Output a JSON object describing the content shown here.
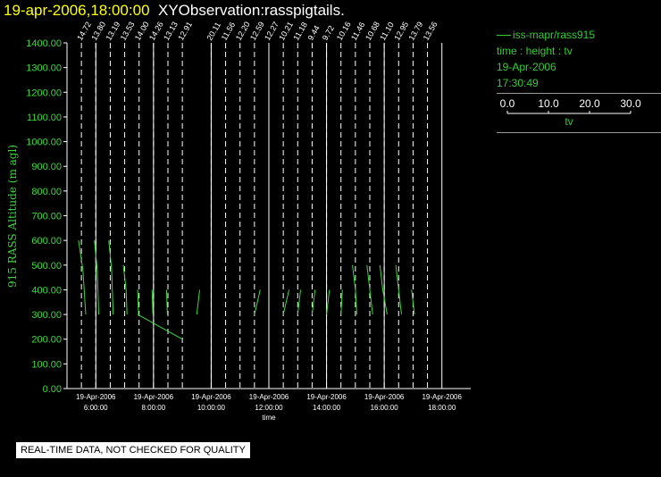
{
  "header": {
    "datetime": "19-apr-2006,18:00:00",
    "title": "XYObservation:rasspigtails."
  },
  "legend": {
    "series": "iss-mapr/rass915",
    "subtitle": "time : height : tv",
    "date": "19-Apr-2006",
    "time": "17:30:49",
    "scale_ticks": [
      "0.0",
      "10.0",
      "20.0",
      "30.0"
    ],
    "scale_label": "tv"
  },
  "footer_notice": "REAL-TIME DATA, NOT CHECKED FOR QUALITY",
  "colors": {
    "data": "#33dd33",
    "axis": "#ffffff",
    "text": "#ffffff",
    "title_accent": "#ffff00"
  },
  "chart_data": {
    "type": "scatter",
    "title": "",
    "ylabel": "915 RASS Altitude (m agl)",
    "xlabel": "time",
    "ylim": [
      0,
      1400
    ],
    "yticks": [
      0,
      100,
      200,
      300,
      400,
      500,
      600,
      700,
      800,
      900,
      1000,
      1100,
      1200,
      1300,
      1400
    ],
    "ytick_labels": [
      "0.00",
      "100.00",
      "200.00",
      "300.00",
      "400.00",
      "500.00",
      "600.00",
      "700.00",
      "800.00",
      "900.00",
      "1000.00",
      "1100.00",
      "1200.00",
      "1300.00",
      "1400.00"
    ],
    "xlim": [
      "05:00",
      "19:00"
    ],
    "xticks": [
      {
        "hour": 6,
        "date": "19-Apr-2006",
        "time": "6:00:00"
      },
      {
        "hour": 8,
        "date": "19-Apr-2006",
        "time": "8:00:00"
      },
      {
        "hour": 10,
        "date": "19-Apr-2006",
        "time": "10:00:00"
      },
      {
        "hour": 12,
        "date": "19-Apr-2006",
        "time": "12:00:00"
      },
      {
        "hour": 14,
        "date": "19-Apr-2006",
        "time": "14:00:00"
      },
      {
        "hour": 16,
        "date": "19-Apr-2006",
        "time": "16:00:00"
      },
      {
        "hour": 18,
        "date": "19-Apr-2006",
        "time": "18:00:00"
      }
    ],
    "profiles": [
      {
        "hour": 5.5,
        "label": "14.72"
      },
      {
        "hour": 6.0,
        "label": "13.80"
      },
      {
        "hour": 6.5,
        "label": "13.19"
      },
      {
        "hour": 7.0,
        "label": "13.53"
      },
      {
        "hour": 7.5,
        "label": "14.00"
      },
      {
        "hour": 8.0,
        "label": "14.26"
      },
      {
        "hour": 8.5,
        "label": "13.13"
      },
      {
        "hour": 9.0,
        "label": "12.91"
      },
      {
        "hour": 10.0,
        "label": "20.11"
      },
      {
        "hour": 10.5,
        "label": "11.56"
      },
      {
        "hour": 11.0,
        "label": "12.20"
      },
      {
        "hour": 11.5,
        "label": "12.59"
      },
      {
        "hour": 12.0,
        "label": "12.27"
      },
      {
        "hour": 12.5,
        "label": "10.21"
      },
      {
        "hour": 13.0,
        "label": "11.18"
      },
      {
        "hour": 13.5,
        "label": "9.44"
      },
      {
        "hour": 14.0,
        "label": "9.72"
      },
      {
        "hour": 14.5,
        "label": "10.16"
      },
      {
        "hour": 15.0,
        "label": "11.46"
      },
      {
        "hour": 15.5,
        "label": "10.68"
      },
      {
        "hour": 16.0,
        "label": "11.10"
      },
      {
        "hour": 16.5,
        "label": "12.95"
      },
      {
        "hour": 17.0,
        "label": "13.79"
      },
      {
        "hour": 17.5,
        "label": "13.56"
      }
    ],
    "tails": [
      [
        [
          5.4,
          600
        ],
        [
          5.55,
          480
        ],
        [
          5.65,
          300
        ]
      ],
      [
        [
          5.95,
          600
        ],
        [
          6.05,
          480
        ],
        [
          6.1,
          300
        ]
      ],
      [
        [
          6.45,
          600
        ],
        [
          6.55,
          480
        ],
        [
          6.6,
          300
        ]
      ],
      [
        [
          6.95,
          500
        ],
        [
          7.05,
          400
        ],
        [
          7.08,
          300
        ]
      ],
      [
        [
          7.45,
          400
        ],
        [
          7.48,
          300
        ]
      ],
      [
        [
          7.95,
          400
        ],
        [
          7.98,
          300
        ]
      ],
      [
        [
          8.45,
          400
        ],
        [
          8.48,
          300
        ]
      ],
      [
        [
          7.45,
          300
        ],
        [
          9.0,
          200
        ]
      ],
      [
        [
          9.5,
          300
        ],
        [
          9.6,
          400
        ]
      ],
      [
        [
          11.5,
          300
        ],
        [
          11.7,
          400
        ]
      ],
      [
        [
          12.5,
          300
        ],
        [
          12.7,
          400
        ]
      ],
      [
        [
          13.0,
          300
        ],
        [
          13.1,
          400
        ]
      ],
      [
        [
          13.5,
          300
        ],
        [
          13.6,
          400
        ]
      ],
      [
        [
          14.0,
          300
        ],
        [
          14.1,
          400
        ]
      ],
      [
        [
          14.5,
          300
        ],
        [
          14.55,
          400
        ]
      ],
      [
        [
          14.9,
          500
        ],
        [
          15.0,
          400
        ],
        [
          15.05,
          300
        ]
      ],
      [
        [
          15.4,
          500
        ],
        [
          15.5,
          400
        ],
        [
          15.6,
          300
        ]
      ],
      [
        [
          15.85,
          500
        ],
        [
          15.95,
          400
        ],
        [
          16.1,
          300
        ]
      ],
      [
        [
          16.4,
          500
        ],
        [
          16.5,
          400
        ],
        [
          16.6,
          300
        ]
      ],
      [
        [
          16.95,
          400
        ],
        [
          17.05,
          300
        ]
      ]
    ]
  }
}
